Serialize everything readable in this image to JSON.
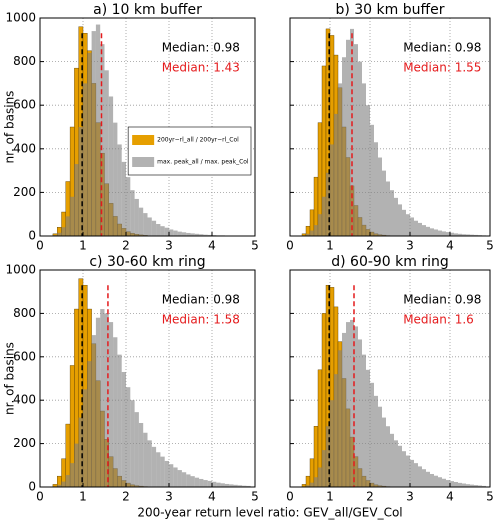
{
  "xlabel": "200-year return level ratio: GEV_all/GEV_Col",
  "chart_data": [
    {
      "type": "histogram",
      "title": "a) 10 km buffer",
      "ylabel": "nr. of basins",
      "xlim": [
        0,
        5
      ],
      "xticks": [
        0,
        1,
        2,
        3,
        4,
        5
      ],
      "ylim": [
        0,
        1000
      ],
      "yticks": [
        0,
        200,
        400,
        600,
        800,
        1000
      ],
      "show_ytick_labels": true,
      "grid": true,
      "legend": "center right",
      "bins": [
        0.3,
        0.4,
        0.5,
        0.6,
        0.7,
        0.8,
        0.9,
        1.0,
        1.1,
        1.2,
        1.3,
        1.4,
        1.5,
        1.6,
        1.7,
        1.8,
        1.9,
        2.0,
        2.1,
        2.2,
        2.3,
        2.4,
        2.5,
        2.6,
        2.7,
        2.8,
        2.9,
        3.0,
        3.1,
        3.2,
        3.3,
        3.4,
        3.5,
        3.6,
        3.7,
        3.8,
        3.9,
        4.0,
        4.1,
        4.2,
        4.3,
        4.4,
        4.5,
        4.6,
        4.7,
        4.8,
        4.9
      ],
      "series": [
        {
          "name": "200yr−rl_all / 200yr−rl_Col",
          "color": "#e69f00",
          "alpha": 1,
          "values": [
            10,
            40,
            110,
            250,
            500,
            770,
            960,
            930,
            850,
            700,
            520,
            380,
            240,
            150,
            90,
            55,
            35,
            20,
            12,
            8,
            5,
            3,
            0,
            0,
            0,
            0,
            0,
            0,
            0,
            0,
            0,
            0,
            0,
            0,
            0,
            0,
            0,
            0,
            0,
            0,
            0,
            0,
            0,
            0,
            0,
            0
          ]
        },
        {
          "name": "max. peak_all / max. peak_Col",
          "color": "#7f7f7f",
          "alpha": 0.6,
          "values": [
            5,
            15,
            40,
            90,
            180,
            330,
            500,
            700,
            840,
            940,
            970,
            880,
            760,
            640,
            520,
            420,
            340,
            270,
            210,
            170,
            130,
            105,
            85,
            70,
            55,
            45,
            38,
            30,
            25,
            20,
            17,
            14,
            12,
            10,
            8,
            6,
            5,
            4,
            3,
            3,
            2,
            2,
            1,
            1,
            0,
            0
          ]
        }
      ],
      "medians": [
        {
          "value": 0.98,
          "label": "Median: 0.98",
          "color": "#000000"
        },
        {
          "value": 1.43,
          "label": "Median: 1.43",
          "color": "#e41a1c"
        }
      ]
    },
    {
      "type": "histogram",
      "title": "b) 30 km buffer",
      "xlim": [
        0,
        5
      ],
      "xticks": [
        0,
        1,
        2,
        3,
        4,
        5
      ],
      "ylim": [
        0,
        1000
      ],
      "yticks": [
        0,
        200,
        400,
        600,
        800,
        1000
      ],
      "show_ytick_labels": false,
      "grid": true,
      "bins": [
        0.3,
        0.4,
        0.5,
        0.6,
        0.7,
        0.8,
        0.9,
        1.0,
        1.1,
        1.2,
        1.3,
        1.4,
        1.5,
        1.6,
        1.7,
        1.8,
        1.9,
        2.0,
        2.1,
        2.2,
        2.3,
        2.4,
        2.5,
        2.6,
        2.7,
        2.8,
        2.9,
        3.0,
        3.1,
        3.2,
        3.3,
        3.4,
        3.5,
        3.6,
        3.7,
        3.8,
        3.9,
        4.0,
        4.1,
        4.2,
        4.3,
        4.4,
        4.5,
        4.6,
        4.7,
        4.8,
        4.9
      ],
      "series": [
        {
          "color": "#e69f00",
          "alpha": 1,
          "values": [
            10,
            45,
            120,
            270,
            520,
            780,
            950,
            920,
            830,
            680,
            500,
            360,
            230,
            140,
            85,
            50,
            30,
            18,
            10,
            6,
            4,
            2,
            0,
            0,
            0,
            0,
            0,
            0,
            0,
            0,
            0,
            0,
            0,
            0,
            0,
            0,
            0,
            0,
            0,
            0,
            0,
            0,
            0,
            0,
            0,
            0
          ]
        },
        {
          "color": "#7f7f7f",
          "alpha": 0.6,
          "values": [
            3,
            10,
            25,
            50,
            100,
            180,
            290,
            420,
            560,
            700,
            820,
            900,
            950,
            880,
            800,
            700,
            600,
            510,
            430,
            360,
            300,
            250,
            210,
            175,
            145,
            120,
            100,
            85,
            70,
            60,
            50,
            42,
            35,
            30,
            25,
            21,
            18,
            15,
            12,
            10,
            8,
            7,
            6,
            5,
            4,
            3
          ]
        }
      ],
      "medians": [
        {
          "value": 0.98,
          "label": "Median: 0.98",
          "color": "#000000"
        },
        {
          "value": 1.55,
          "label": "Median: 1.55",
          "color": "#e41a1c"
        }
      ]
    },
    {
      "type": "histogram",
      "title": "c) 30-60 km ring",
      "ylabel": "nr. of basins",
      "xlim": [
        0,
        5
      ],
      "xticks": [
        0,
        1,
        2,
        3,
        4,
        5
      ],
      "ylim": [
        0,
        1000
      ],
      "yticks": [
        0,
        200,
        400,
        600,
        800,
        1000
      ],
      "show_ytick_labels": true,
      "grid": true,
      "bins": [
        0.3,
        0.4,
        0.5,
        0.6,
        0.7,
        0.8,
        0.9,
        1.0,
        1.1,
        1.2,
        1.3,
        1.4,
        1.5,
        1.6,
        1.7,
        1.8,
        1.9,
        2.0,
        2.1,
        2.2,
        2.3,
        2.4,
        2.5,
        2.6,
        2.7,
        2.8,
        2.9,
        3.0,
        3.1,
        3.2,
        3.3,
        3.4,
        3.5,
        3.6,
        3.7,
        3.8,
        3.9,
        4.0,
        4.1,
        4.2,
        4.3,
        4.4,
        4.5,
        4.6,
        4.7,
        4.8,
        4.9
      ],
      "series": [
        {
          "color": "#e69f00",
          "alpha": 1,
          "values": [
            12,
            50,
            130,
            290,
            560,
            820,
            960,
            930,
            820,
            660,
            490,
            350,
            220,
            140,
            85,
            50,
            30,
            18,
            10,
            6,
            4,
            2,
            0,
            0,
            0,
            0,
            0,
            0,
            0,
            0,
            0,
            0,
            0,
            0,
            0,
            0,
            0,
            0,
            0,
            0,
            0,
            0,
            0,
            0,
            0,
            0
          ]
        },
        {
          "color": "#7f7f7f",
          "alpha": 0.6,
          "values": [
            3,
            10,
            25,
            55,
            110,
            200,
            320,
            450,
            580,
            700,
            780,
            820,
            800,
            760,
            690,
            610,
            530,
            460,
            400,
            345,
            295,
            250,
            215,
            185,
            160,
            140,
            120,
            105,
            90,
            78,
            68,
            58,
            50,
            43,
            37,
            32,
            28,
            24,
            20,
            17,
            14,
            12,
            10,
            8,
            6,
            5
          ]
        }
      ],
      "medians": [
        {
          "value": 0.98,
          "label": "Median: 0.98",
          "color": "#000000"
        },
        {
          "value": 1.58,
          "label": "Median: 1.58",
          "color": "#e41a1c"
        }
      ]
    },
    {
      "type": "histogram",
      "title": "d) 60-90 km ring",
      "xlim": [
        0,
        5
      ],
      "xticks": [
        0,
        1,
        2,
        3,
        4,
        5
      ],
      "ylim": [
        0,
        1000
      ],
      "yticks": [
        0,
        200,
        400,
        600,
        800,
        1000
      ],
      "show_ytick_labels": false,
      "grid": true,
      "bins": [
        0.3,
        0.4,
        0.5,
        0.6,
        0.7,
        0.8,
        0.9,
        1.0,
        1.1,
        1.2,
        1.3,
        1.4,
        1.5,
        1.6,
        1.7,
        1.8,
        1.9,
        2.0,
        2.1,
        2.2,
        2.3,
        2.4,
        2.5,
        2.6,
        2.7,
        2.8,
        2.9,
        3.0,
        3.1,
        3.2,
        3.3,
        3.4,
        3.5,
        3.6,
        3.7,
        3.8,
        3.9,
        4.0,
        4.1,
        4.2,
        4.3,
        4.4,
        4.5,
        4.6,
        4.7,
        4.8,
        4.9
      ],
      "series": [
        {
          "color": "#e69f00",
          "alpha": 1,
          "values": [
            12,
            50,
            130,
            280,
            540,
            800,
            930,
            920,
            830,
            670,
            500,
            360,
            230,
            140,
            85,
            50,
            30,
            18,
            10,
            6,
            4,
            2,
            0,
            0,
            0,
            0,
            0,
            0,
            0,
            0,
            0,
            0,
            0,
            0,
            0,
            0,
            0,
            0,
            0,
            0,
            0,
            0,
            0,
            0,
            0,
            0
          ]
        },
        {
          "color": "#7f7f7f",
          "alpha": 0.6,
          "values": [
            3,
            8,
            20,
            45,
            90,
            170,
            280,
            400,
            520,
            630,
            710,
            760,
            770,
            740,
            680,
            610,
            540,
            480,
            420,
            370,
            320,
            280,
            245,
            215,
            190,
            165,
            145,
            125,
            110,
            95,
            82,
            70,
            60,
            52,
            45,
            38,
            32,
            27,
            23,
            19,
            16,
            13,
            11,
            9,
            7,
            5
          ]
        }
      ],
      "medians": [
        {
          "value": 0.98,
          "label": "Median: 0.98",
          "color": "#000000"
        },
        {
          "value": 1.6,
          "label": "Median: 1.6",
          "color": "#e41a1c"
        }
      ]
    }
  ]
}
